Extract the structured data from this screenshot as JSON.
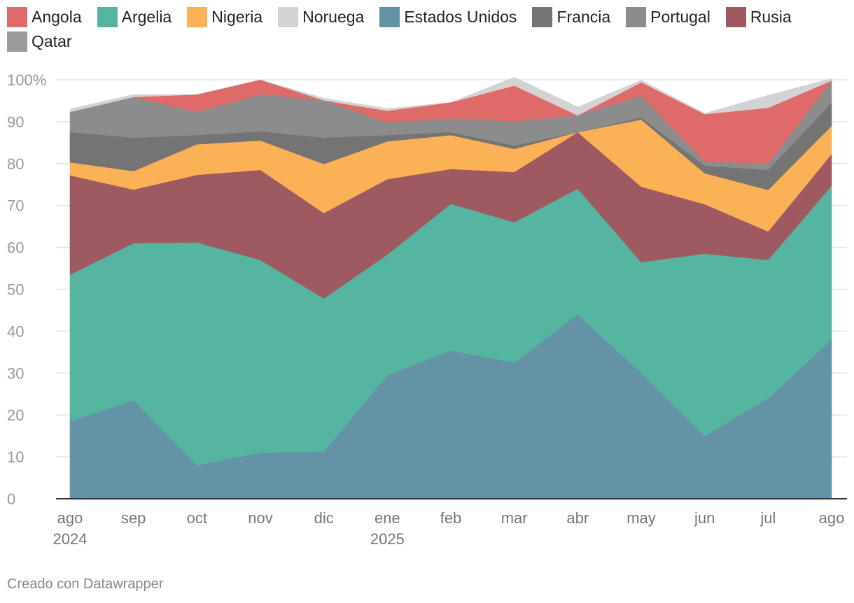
{
  "chart_data": {
    "type": "area",
    "stacked": true,
    "categories": [
      [
        "ago",
        "2024"
      ],
      [
        "sep",
        ""
      ],
      [
        "oct",
        ""
      ],
      [
        "nov",
        ""
      ],
      [
        "dic",
        ""
      ],
      [
        "ene",
        "2025"
      ],
      [
        "feb",
        ""
      ],
      [
        "mar",
        ""
      ],
      [
        "abr",
        ""
      ],
      [
        "may",
        ""
      ],
      [
        "jun",
        ""
      ],
      [
        "jul",
        ""
      ],
      [
        "ago",
        ""
      ]
    ],
    "ylim": [
      0,
      100
    ],
    "yticks": [
      "0",
      "10",
      "20",
      "30",
      "40",
      "50",
      "60",
      "70",
      "80",
      "90",
      "100%"
    ],
    "grid": true,
    "legend_position": "top",
    "stack_order": [
      "Estados Unidos",
      "Argelia",
      "Rusia",
      "Nigeria",
      "Francia",
      "Portugal",
      "Qatar",
      "Angola",
      "Noruega"
    ],
    "series": [
      {
        "name": "Angola",
        "color": "#df6a6a",
        "values": [
          0,
          0,
          4.2,
          3.5,
          0,
          2.8,
          3.8,
          8.5,
          0,
          3.2,
          11.3,
          13.3,
          0
        ]
      },
      {
        "name": "Argelia",
        "color": "#55b5a0",
        "values": [
          35,
          37.5,
          53.2,
          46,
          36.5,
          28.8,
          35,
          33.5,
          30,
          26.5,
          43.5,
          33,
          36.7
        ]
      },
      {
        "name": "Nigeria",
        "color": "#fbb256",
        "values": [
          3.1,
          4.4,
          7.3,
          7,
          11.7,
          9,
          8.1,
          5.5,
          0,
          16,
          7.4,
          9.9,
          6.7
        ]
      },
      {
        "name": "Noruega",
        "color": "#d3d3d3",
        "values": [
          0.7,
          0.6,
          0,
          0,
          0.5,
          0.5,
          0,
          2,
          2,
          0.5,
          0.2,
          3,
          0.5
        ]
      },
      {
        "name": "Estados Unidos",
        "color": "#6393a5",
        "values": [
          18.5,
          23.5,
          8,
          11,
          11.3,
          29.5,
          35.4,
          32.5,
          44,
          30,
          15,
          24,
          38
        ]
      },
      {
        "name": "Francia",
        "color": "#747474",
        "values": [
          7.2,
          8,
          2.2,
          2.2,
          6.3,
          1.5,
          0.7,
          0.8,
          0,
          0.5,
          1.8,
          4.8,
          5.5
        ]
      },
      {
        "name": "Portugal",
        "color": "#8c8c8c",
        "values": [
          4.8,
          9.7,
          5.5,
          8.8,
          8.9,
          3,
          3.3,
          5.8,
          4,
          5.2,
          1,
          1.5,
          5.3
        ]
      },
      {
        "name": "Rusia",
        "color": "#9e5961",
        "values": [
          23.7,
          12.8,
          16.1,
          21.5,
          20.4,
          18,
          8.3,
          12,
          13.5,
          18,
          11.8,
          6.8,
          7.6
        ]
      },
      {
        "name": "Qatar",
        "color": "#9b9b9b",
        "values": [
          0,
          0,
          0,
          0,
          0,
          0,
          0,
          0,
          0,
          0,
          0,
          0,
          0
        ]
      }
    ]
  },
  "credit": "Creado con Datawrapper"
}
